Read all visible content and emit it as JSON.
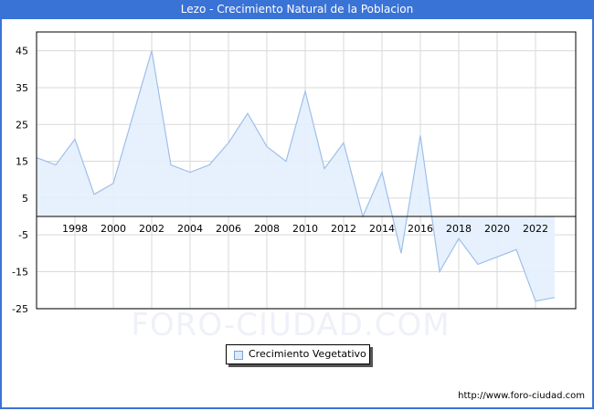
{
  "header": {
    "title": "Lezo - Crecimiento Natural de la Poblacion"
  },
  "legend": {
    "label": "Crecimiento Vegetativo",
    "swatch_color": "#dbe9fb"
  },
  "watermark": "FORO-CIUDAD.COM",
  "footer": {
    "url": "http://www.foro-ciudad.com"
  },
  "colors": {
    "title_bar": "#3a73d6",
    "area_fill": "#e3f0fd",
    "line": "#9fbfe8",
    "grid": "#d9d9d9"
  },
  "chart_data": {
    "type": "area",
    "title": "Lezo - Crecimiento Natural de la Poblacion",
    "xlabel": "",
    "ylabel": "",
    "x": [
      1996,
      1997,
      1998,
      1999,
      2000,
      2001,
      2002,
      2003,
      2004,
      2005,
      2006,
      2007,
      2008,
      2009,
      2010,
      2011,
      2012,
      2013,
      2014,
      2015,
      2016,
      2017,
      2018,
      2019,
      2020,
      2021,
      2022,
      2023
    ],
    "series": [
      {
        "name": "Crecimiento Vegetativo",
        "values": [
          16,
          14,
          21,
          6,
          9,
          27,
          45,
          14,
          12,
          14,
          20,
          28,
          19,
          15,
          34,
          13,
          20,
          0,
          12,
          -10,
          22,
          -15,
          -6,
          -13,
          -11,
          -9,
          -23,
          -22
        ]
      }
    ],
    "x_tick_labels": [
      "1998",
      "2000",
      "2002",
      "2004",
      "2006",
      "2008",
      "2010",
      "2012",
      "2014",
      "2016",
      "2018",
      "2020",
      "2022"
    ],
    "y_tick_labels": [
      "45",
      "35",
      "25",
      "15",
      "5",
      "-5",
      "-15",
      "-25"
    ],
    "ylim": [
      -25,
      50
    ],
    "xlim": [
      1996,
      2024
    ],
    "grid": true,
    "legend_position": "bottom"
  }
}
